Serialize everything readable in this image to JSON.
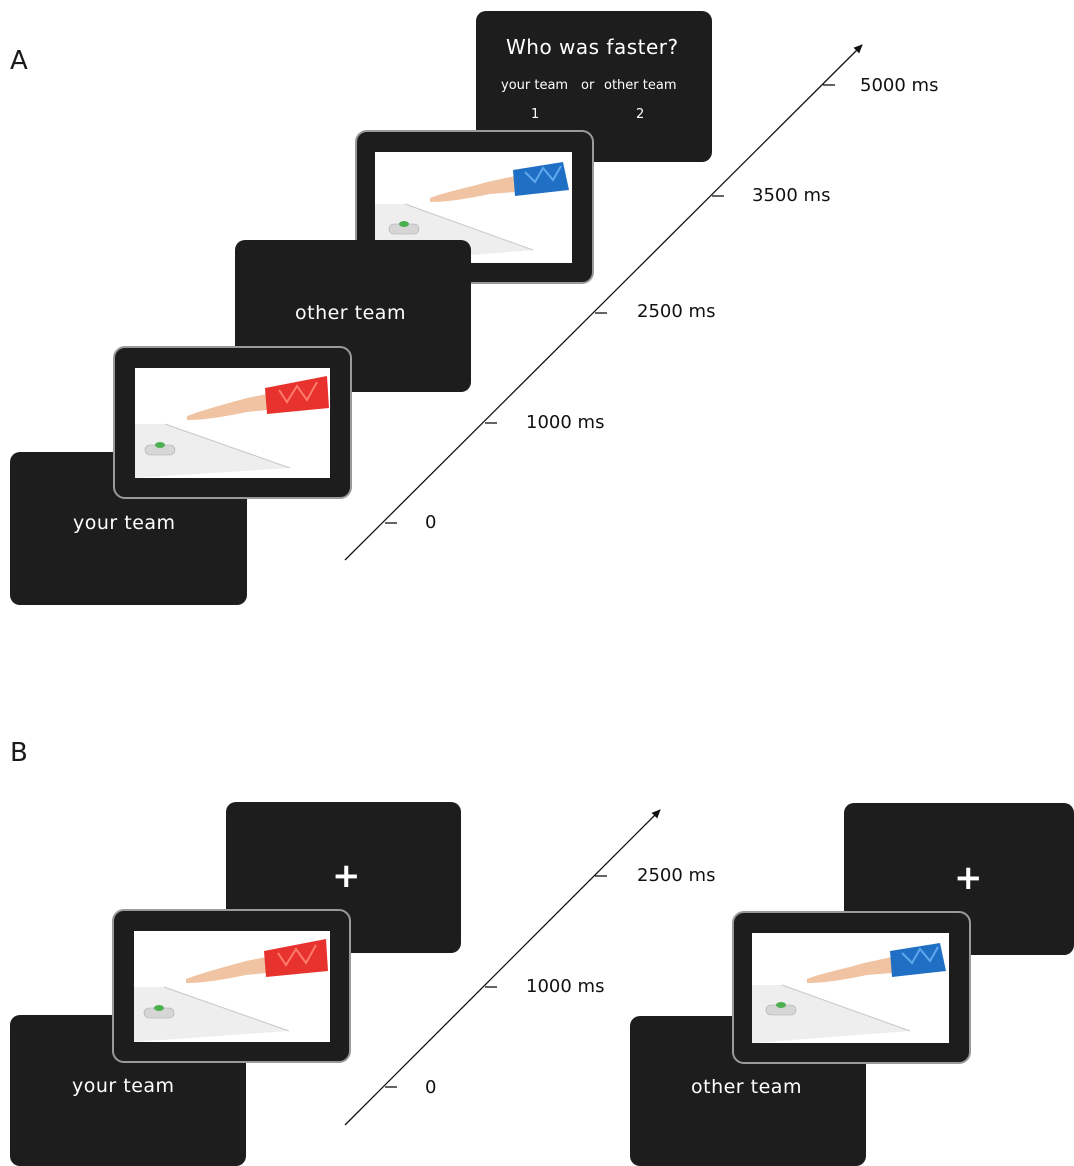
{
  "panel_a": {
    "label": "A",
    "screens": {
      "your_team": "your team",
      "other_team": "other team",
      "question": "Who was faster?",
      "option_your_team": "your team",
      "option_or": "or",
      "option_other_team": "other team",
      "option_1": "1",
      "option_2": "2"
    },
    "times": [
      "0",
      "1000 ms",
      "2500 ms",
      "3500 ms",
      "5000 ms"
    ]
  },
  "panel_b": {
    "label": "B",
    "screens": {
      "your_team": "your team",
      "other_team": "other team",
      "fixation_left": "+",
      "fixation_right": "+"
    },
    "times": [
      "0",
      "1000 ms",
      "2500 ms"
    ]
  },
  "colors": {
    "screen_bg": "#1d1d1d",
    "sleeve_red": "#e8322d",
    "sleeve_blue": "#1f6fc4",
    "button_green": "#4caf50"
  }
}
